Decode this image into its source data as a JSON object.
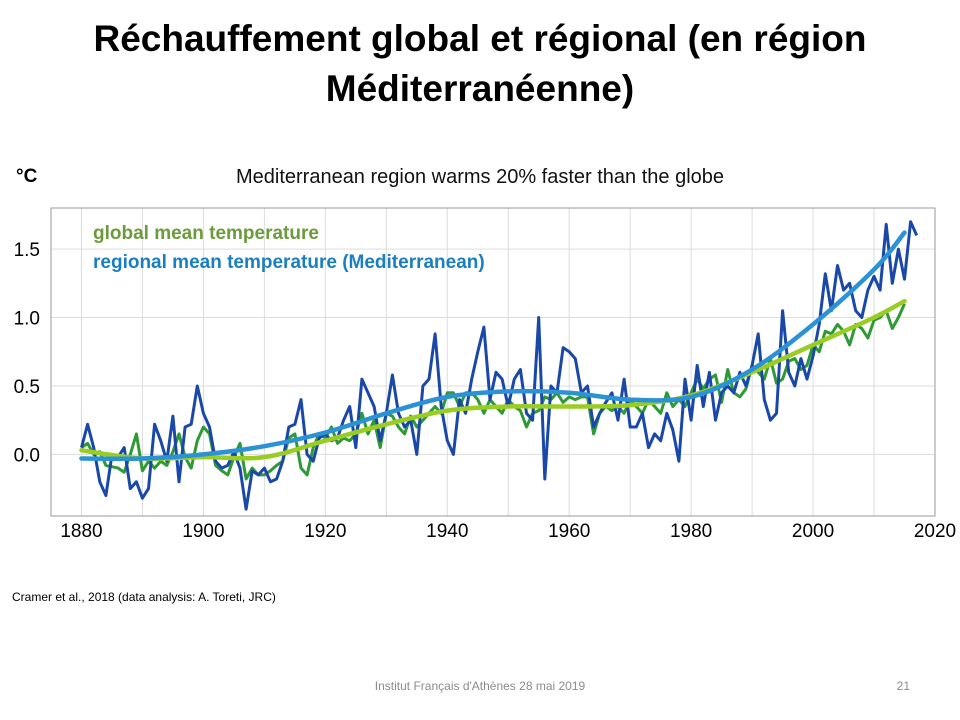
{
  "slide": {
    "title": "Réchauffement global et régional (en région Méditerranéenne)",
    "unit": "°C",
    "citation": "Cramer et al., 2018 (data analysis: A. Toreti, JRC)",
    "footer": "Institut Français d'Athènes 28 mai 2019",
    "page_number": "21"
  },
  "chart_data": {
    "type": "line",
    "title": "Mediterranean region warms 20% faster than the globe",
    "xlabel": "",
    "ylabel": "°C",
    "xlim": [
      1875,
      2020
    ],
    "ylim": [
      -0.45,
      1.8
    ],
    "xticks": [
      1880,
      1900,
      1920,
      1940,
      1960,
      1980,
      2000,
      2020
    ],
    "xtick_labels": [
      "1880",
      "1900",
      "1920",
      "1940",
      "1960",
      "1980",
      "2000",
      "2020"
    ],
    "yticks": [
      0.0,
      0.5,
      1.0,
      1.5
    ],
    "ytick_labels": [
      "0.0",
      "0.5",
      "1.0",
      "1.5"
    ],
    "grid": true,
    "legend": "top-left",
    "x_start": 1880,
    "series": [
      {
        "name": "global mean temperature",
        "color": "#2f9a35",
        "label_color": "#6b9b3c",
        "values": [
          0.05,
          0.08,
          0.0,
          0.02,
          -0.08,
          -0.09,
          -0.1,
          -0.13,
          0.0,
          0.15,
          -0.12,
          -0.05,
          -0.1,
          -0.05,
          -0.08,
          0.02,
          0.15,
          -0.02,
          -0.1,
          0.1,
          0.2,
          0.15,
          -0.08,
          -0.12,
          -0.15,
          -0.02,
          0.08,
          -0.18,
          -0.1,
          -0.15,
          -0.15,
          -0.12,
          -0.08,
          -0.05,
          0.12,
          0.15,
          -0.1,
          -0.15,
          0.05,
          0.15,
          0.12,
          0.2,
          0.08,
          0.12,
          0.1,
          0.15,
          0.3,
          0.15,
          0.25,
          0.05,
          0.3,
          0.28,
          0.2,
          0.15,
          0.28,
          0.2,
          0.25,
          0.3,
          0.35,
          0.3,
          0.45,
          0.45,
          0.35,
          0.45,
          0.45,
          0.4,
          0.3,
          0.4,
          0.35,
          0.3,
          0.4,
          0.35,
          0.32,
          0.2,
          0.3,
          0.32,
          0.42,
          0.4,
          0.45,
          0.38,
          0.42,
          0.4,
          0.42,
          0.42,
          0.15,
          0.3,
          0.35,
          0.32,
          0.35,
          0.3,
          0.4,
          0.35,
          0.3,
          0.4,
          0.35,
          0.3,
          0.45,
          0.35,
          0.4,
          0.35,
          0.45,
          0.55,
          0.48,
          0.55,
          0.58,
          0.38,
          0.62,
          0.45,
          0.42,
          0.48,
          0.65,
          0.6,
          0.55,
          0.7,
          0.52,
          0.55,
          0.68,
          0.7,
          0.62,
          0.65,
          0.8,
          0.75,
          0.9,
          0.88,
          0.95,
          0.9,
          0.8,
          0.95,
          0.92,
          0.85,
          0.98,
          1.0,
          1.05,
          0.92,
          1.0,
          1.1
        ]
      },
      {
        "name": "regional mean temperature (Mediterranean)",
        "color": "#1a48a8",
        "label_color": "#1a7fc1",
        "values": [
          0.05,
          0.22,
          0.05,
          -0.2,
          -0.3,
          0.0,
          -0.02,
          0.05,
          -0.25,
          -0.2,
          -0.32,
          -0.25,
          0.22,
          0.1,
          -0.05,
          0.28,
          -0.2,
          0.2,
          0.22,
          0.5,
          0.3,
          0.2,
          -0.05,
          -0.1,
          -0.08,
          0.02,
          -0.1,
          -0.4,
          -0.12,
          -0.15,
          -0.1,
          -0.2,
          -0.18,
          -0.05,
          0.2,
          0.22,
          0.4,
          0.0,
          -0.05,
          0.12,
          0.15,
          0.1,
          0.12,
          0.25,
          0.35,
          0.05,
          0.55,
          0.45,
          0.35,
          0.1,
          0.3,
          0.58,
          0.3,
          0.2,
          0.25,
          0.0,
          0.5,
          0.55,
          0.88,
          0.35,
          0.1,
          0.0,
          0.4,
          0.3,
          0.55,
          0.75,
          0.93,
          0.4,
          0.6,
          0.55,
          0.35,
          0.55,
          0.62,
          0.3,
          0.25,
          1.0,
          -0.18,
          0.5,
          0.45,
          0.78,
          0.75,
          0.7,
          0.45,
          0.5,
          0.2,
          0.3,
          0.38,
          0.45,
          0.25,
          0.55,
          0.2,
          0.2,
          0.3,
          0.05,
          0.15,
          0.1,
          0.3,
          0.18,
          -0.05,
          0.55,
          0.25,
          0.65,
          0.35,
          0.6,
          0.25,
          0.45,
          0.5,
          0.45,
          0.6,
          0.5,
          0.65,
          0.88,
          0.4,
          0.25,
          0.3,
          1.05,
          0.6,
          0.5,
          0.7,
          0.55,
          0.72,
          0.95,
          1.32,
          1.05,
          1.38,
          1.2,
          1.25,
          1.05,
          1.0,
          1.2,
          1.3,
          1.2,
          1.68,
          1.25,
          1.5,
          1.28,
          1.7,
          1.6
        ]
      }
    ],
    "trends": [
      {
        "name": "global mean temperature (smoothed)",
        "color": "#9acd24",
        "x": [
          1880,
          1890,
          1900,
          1910,
          1920,
          1930,
          1940,
          1950,
          1960,
          1970,
          1980,
          1990,
          2000,
          2010,
          2015
        ],
        "values": [
          0.03,
          -0.03,
          -0.02,
          -0.02,
          0.1,
          0.22,
          0.32,
          0.35,
          0.35,
          0.36,
          0.43,
          0.6,
          0.8,
          1.0,
          1.12
        ]
      },
      {
        "name": "regional mean temperature (Mediterranean) (smoothed)",
        "color": "#2a92d5",
        "x": [
          1880,
          1890,
          1900,
          1910,
          1920,
          1930,
          1940,
          1950,
          1960,
          1970,
          1980,
          1990,
          2000,
          2010,
          2015
        ],
        "values": [
          -0.03,
          -0.03,
          0.0,
          0.06,
          0.16,
          0.3,
          0.42,
          0.46,
          0.45,
          0.4,
          0.42,
          0.62,
          0.95,
          1.35,
          1.62
        ]
      }
    ]
  }
}
